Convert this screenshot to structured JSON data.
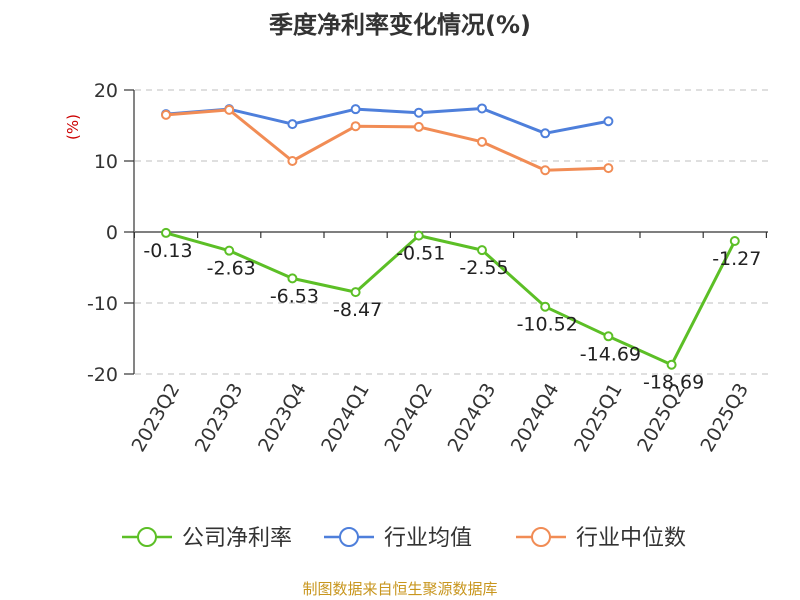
{
  "chart_data": {
    "type": "line",
    "title": "季度净利率变化情况(%)",
    "ylabel": "(%)",
    "xlabel": "",
    "categories": [
      "2023Q2",
      "2023Q3",
      "2023Q4",
      "2024Q1",
      "2024Q2",
      "2024Q3",
      "2024Q4",
      "2025Q1",
      "2025Q2",
      "2025Q3"
    ],
    "ylim": [
      -20,
      20
    ],
    "yticks": [
      20,
      10,
      0,
      -10,
      -20
    ],
    "grid": true,
    "legend_position": "bottom",
    "series": [
      {
        "name": "公司净利率",
        "color": "#5cbf26",
        "values": [
          -0.13,
          -2.63,
          -6.53,
          -8.47,
          -0.51,
          -2.55,
          -10.52,
          -14.69,
          -18.69,
          -1.27
        ],
        "labels": [
          "-0.13",
          "-2.63",
          "-6.53",
          "-8.47",
          "-0.51",
          "-2.55",
          "-10.52",
          "-14.69",
          "-18.69",
          "-1.27"
        ]
      },
      {
        "name": "行业均值",
        "color": "#4e7fdb",
        "values": [
          16.6,
          17.3,
          15.2,
          17.3,
          16.8,
          17.4,
          13.9,
          15.6,
          null,
          null
        ]
      },
      {
        "name": "行业中位数",
        "color": "#f18c55",
        "values": [
          16.5,
          17.2,
          10.0,
          14.9,
          14.8,
          12.7,
          8.7,
          9.0,
          null,
          null
        ]
      }
    ]
  },
  "source_note": "制图数据来自恒生聚源数据库"
}
